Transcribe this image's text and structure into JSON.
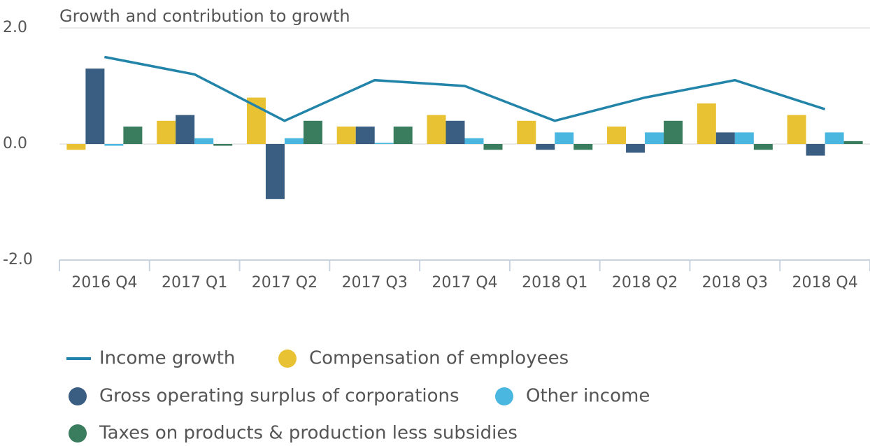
{
  "chart_data": {
    "type": "bar",
    "y_label": "Growth and contribution to growth",
    "categories": [
      "2016 Q4",
      "2017 Q1",
      "2017 Q2",
      "2017 Q3",
      "2017 Q4",
      "2018 Q1",
      "2018 Q2",
      "2018 Q3",
      "2018 Q4"
    ],
    "series": [
      {
        "name": "Income growth",
        "type": "line",
        "color": "#2384a9",
        "values": [
          1.5,
          1.2,
          0.4,
          1.1,
          1.0,
          0.4,
          0.8,
          1.1,
          0.6
        ]
      },
      {
        "name": "Compensation of employees",
        "color": "#e8c233",
        "values": [
          -0.1,
          0.4,
          0.8,
          0.3,
          0.5,
          0.4,
          0.3,
          0.7,
          0.5
        ]
      },
      {
        "name": "Gross operating surplus of corporations",
        "color": "#3a5d82",
        "values": [
          1.3,
          0.5,
          -0.95,
          0.3,
          0.4,
          -0.1,
          -0.15,
          0.2,
          -0.2
        ]
      },
      {
        "name": "Other income",
        "color": "#4ab7e0",
        "values": [
          -0.03,
          0.1,
          0.1,
          0.02,
          0.1,
          0.2,
          0.2,
          0.2,
          0.2
        ]
      },
      {
        "name": "Taxes on products & production less subsidies",
        "color": "#3a7d5e",
        "values": [
          0.3,
          -0.03,
          0.4,
          0.3,
          -0.1,
          -0.1,
          0.4,
          -0.1,
          0.05
        ]
      }
    ],
    "ylim": [
      -2,
      2
    ],
    "yticks": [
      {
        "value": 2,
        "label": "2.0"
      },
      {
        "value": 0,
        "label": "0.0"
      },
      {
        "value": -2,
        "label": "-2.0"
      }
    ],
    "grid": true,
    "legend": "bottom"
  }
}
